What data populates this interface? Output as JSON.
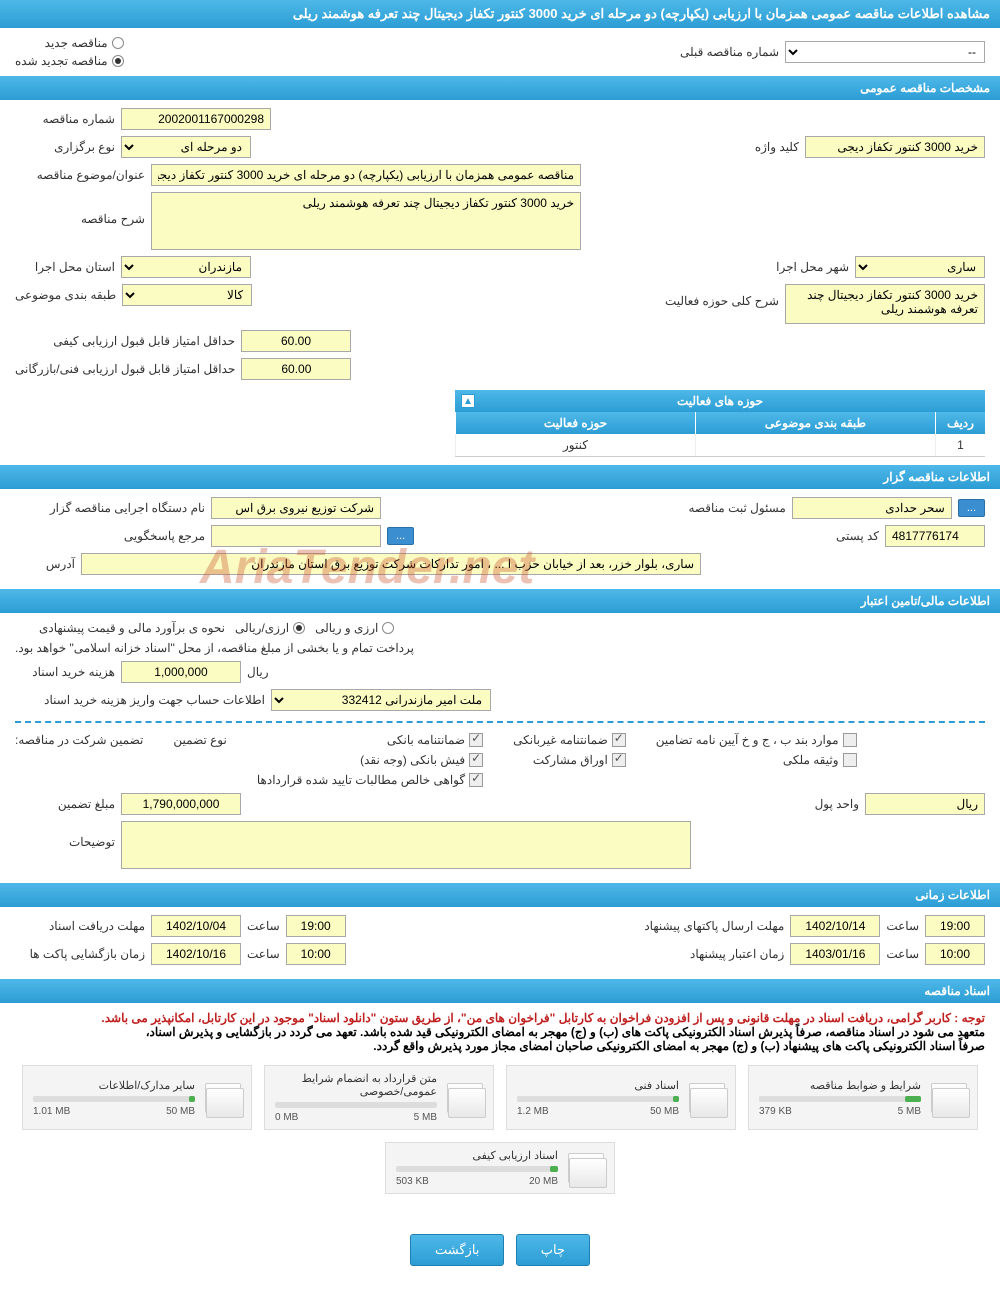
{
  "header": {
    "title": "مشاهده اطلاعات مناقصه عمومی همزمان با ارزیابی (یکپارچه) دو مرحله ای خرید 3000 کنتور تکفاز دیجیتال چند تعرفه هوشمند ریلی"
  },
  "status": {
    "new_label": "مناقصه جدید",
    "renewed_label": "مناقصه تجدید شده",
    "selected": "renewed",
    "prev_number_label": "شماره مناقصه قبلی",
    "prev_number_value": "--"
  },
  "general": {
    "section_title": "مشخصات مناقصه عمومی",
    "tender_no_label": "شماره مناقصه",
    "tender_no": "2002001167000298",
    "type_label": "نوع برگزاری",
    "type": "دو مرحله ای",
    "keyword_label": "کلید واژه",
    "keyword": "خرید 3000 کنتور تکفاز دیجی",
    "subject_label": "عنوان/موضوع مناقصه",
    "subject": "مناقصه عمومی همزمان با ارزیابی (یکپارچه) دو مرحله ای خرید 3000 کنتور تکفاز دیجیتال چند تعرفه ه",
    "desc_label": "شرح مناقصه",
    "desc": "خرید 3000 کنتور تکفاز دیجیتال چند تعرفه هوشمند ریلی",
    "province_label": "استان محل اجرا",
    "province": "مازندران",
    "city_label": "شهر محل اجرا",
    "city": "ساری",
    "category_label": "طبقه بندی موضوعی",
    "category": "کالا",
    "activity_desc_label": "شرح کلی حوزه فعالیت",
    "activity_desc": "خرید 3000 کنتور تکفاز دیجیتال چند تعرفه هوشمند ریلی",
    "min_quality_label": "حداقل امتیاز قابل قبول ارزیابی کیفی",
    "min_quality": "60.00",
    "min_tech_label": "حداقل امتیاز قابل قبول ارزیابی فنی/بازرگانی",
    "min_tech": "60.00",
    "activities_title": "حوزه های فعالیت",
    "col_row": "ردیف",
    "col_category": "طبقه بندی موضوعی",
    "col_activity": "حوزه فعالیت",
    "rows": [
      {
        "idx": "1",
        "cat": "",
        "act": "کنتور"
      }
    ]
  },
  "holder": {
    "section_title": "اطلاعات مناقصه گزار",
    "org_label": "نام دستگاه اجرایی مناقصه گزار",
    "org": "شرکت توزیع نیروی برق اس",
    "responsible_label": "مسئول ثبت مناقصه",
    "responsible": "سحر حدادی",
    "ref_label": "مرجع پاسخگویی",
    "ref": "",
    "postal_label": "کد پستی",
    "postal": "4817776174",
    "address_label": "آدرس",
    "address": "ساری، بلوار خزر، بعد از خیابان حزب ا ... ، امور تدارکات شرکت توزیع برق استان مازندران",
    "more_btn": "..."
  },
  "financial": {
    "section_title": "اطلاعات مالی/تامین اعتبار",
    "estimate_label": "نحوه ی برآورد مالی و قیمت پیشنهادی",
    "currency_fx": "ارزی/ریالی",
    "currency_fx_only": "ارزی و ریالی",
    "treasury_note": "پرداخت تمام و یا بخشی از مبلغ مناقصه، از محل \"اسناد خزانه اسلامی\" خواهد بود.",
    "doc_fee_label": "هزینه خرید اسناد",
    "doc_fee": "1,000,000",
    "rial": "ریال",
    "account_label": "اطلاعات حساب جهت واریز هزینه خرید اسناد",
    "account": "ملت امیر مازندرانی 332412",
    "guarantee_label": "تضمین شرکت در مناقصه:",
    "gtype_label": "نوع تضمین",
    "g_bank": "ضمانتنامه بانکی",
    "g_nonbank": "ضمانتنامه غیربانکی",
    "g_bond": "موارد بند ب ، ج و خ آیین نامه تضامین",
    "g_cash": "فیش بانکی (وجه نقد)",
    "g_securities": "اوراق مشارکت",
    "g_property": "وثیقه ملکی",
    "g_receivables": "گواهی خالص مطالبات تایید شده قراردادها",
    "g_amount_label": "مبلغ تضمین",
    "g_amount": "1,790,000,000",
    "g_unit_label": "واحد پول",
    "g_unit": "ریال",
    "notes_label": "توضیحات",
    "notes": ""
  },
  "timing": {
    "section_title": "اطلاعات زمانی",
    "deadline_docs_label": "مهلت دریافت اسناد",
    "deadline_docs_date": "1402/10/04",
    "deadline_docs_time": "19:00",
    "deadline_proposal_label": "مهلت ارسال پاکتهای پیشنهاد",
    "deadline_proposal_date": "1402/10/14",
    "deadline_proposal_time": "19:00",
    "opening_label": "زمان بازگشایی پاکت ها",
    "opening_date": "1402/10/16",
    "opening_time": "10:00",
    "validity_label": "زمان اعتبار پیشنهاد",
    "validity_date": "1403/01/16",
    "validity_time": "10:00",
    "time_label": "ساعت"
  },
  "docs": {
    "section_title": "اسناد مناقصه",
    "note1": "توجه : کاربر گرامی، دریافت اسناد در مهلت قانونی و پس از افزودن فراخوان به کارتابل \"فراخوان های من\"، از طریق ستون \"دانلود اسناد\" موجود در این کارتابل، امکانپذیر می باشد.",
    "note2": "متعهد می شود در اسناد مناقصه، صرفاً پذیرش اسناد الکترونیکی پاکت های (ب) و (ج) مهجر به امضای الکترونیکی قید شده باشد. تعهد می گردد در بازگشایی و پذیرش اسناد،",
    "note3": "صرفاً اسناد الکترونیکی پاکت های پیشنهاد (ب) و (ج) مهجر به امضای الکترونیکی صاحبان امضای مجاز مورد پذیرش واقع گردد.",
    "cards": [
      {
        "title": "شرایط و ضوابط مناقصه",
        "size": "379 KB",
        "max": "5 MB",
        "pct": 10
      },
      {
        "title": "اسناد فنی",
        "size": "1.2 MB",
        "max": "50 MB",
        "pct": 4
      },
      {
        "title": "متن قرارداد به انضمام شرایط عمومی/خصوصی",
        "size": "0 MB",
        "max": "5 MB",
        "pct": 0
      },
      {
        "title": "سایر مدارک/اطلاعات",
        "size": "1.01 MB",
        "max": "50 MB",
        "pct": 4
      },
      {
        "title": "اسناد ارزیابی کیفی",
        "size": "503 KB",
        "max": "20 MB",
        "pct": 5
      }
    ]
  },
  "buttons": {
    "print": "چاپ",
    "back": "بازگشت"
  },
  "watermark": "AriaTender.net"
}
